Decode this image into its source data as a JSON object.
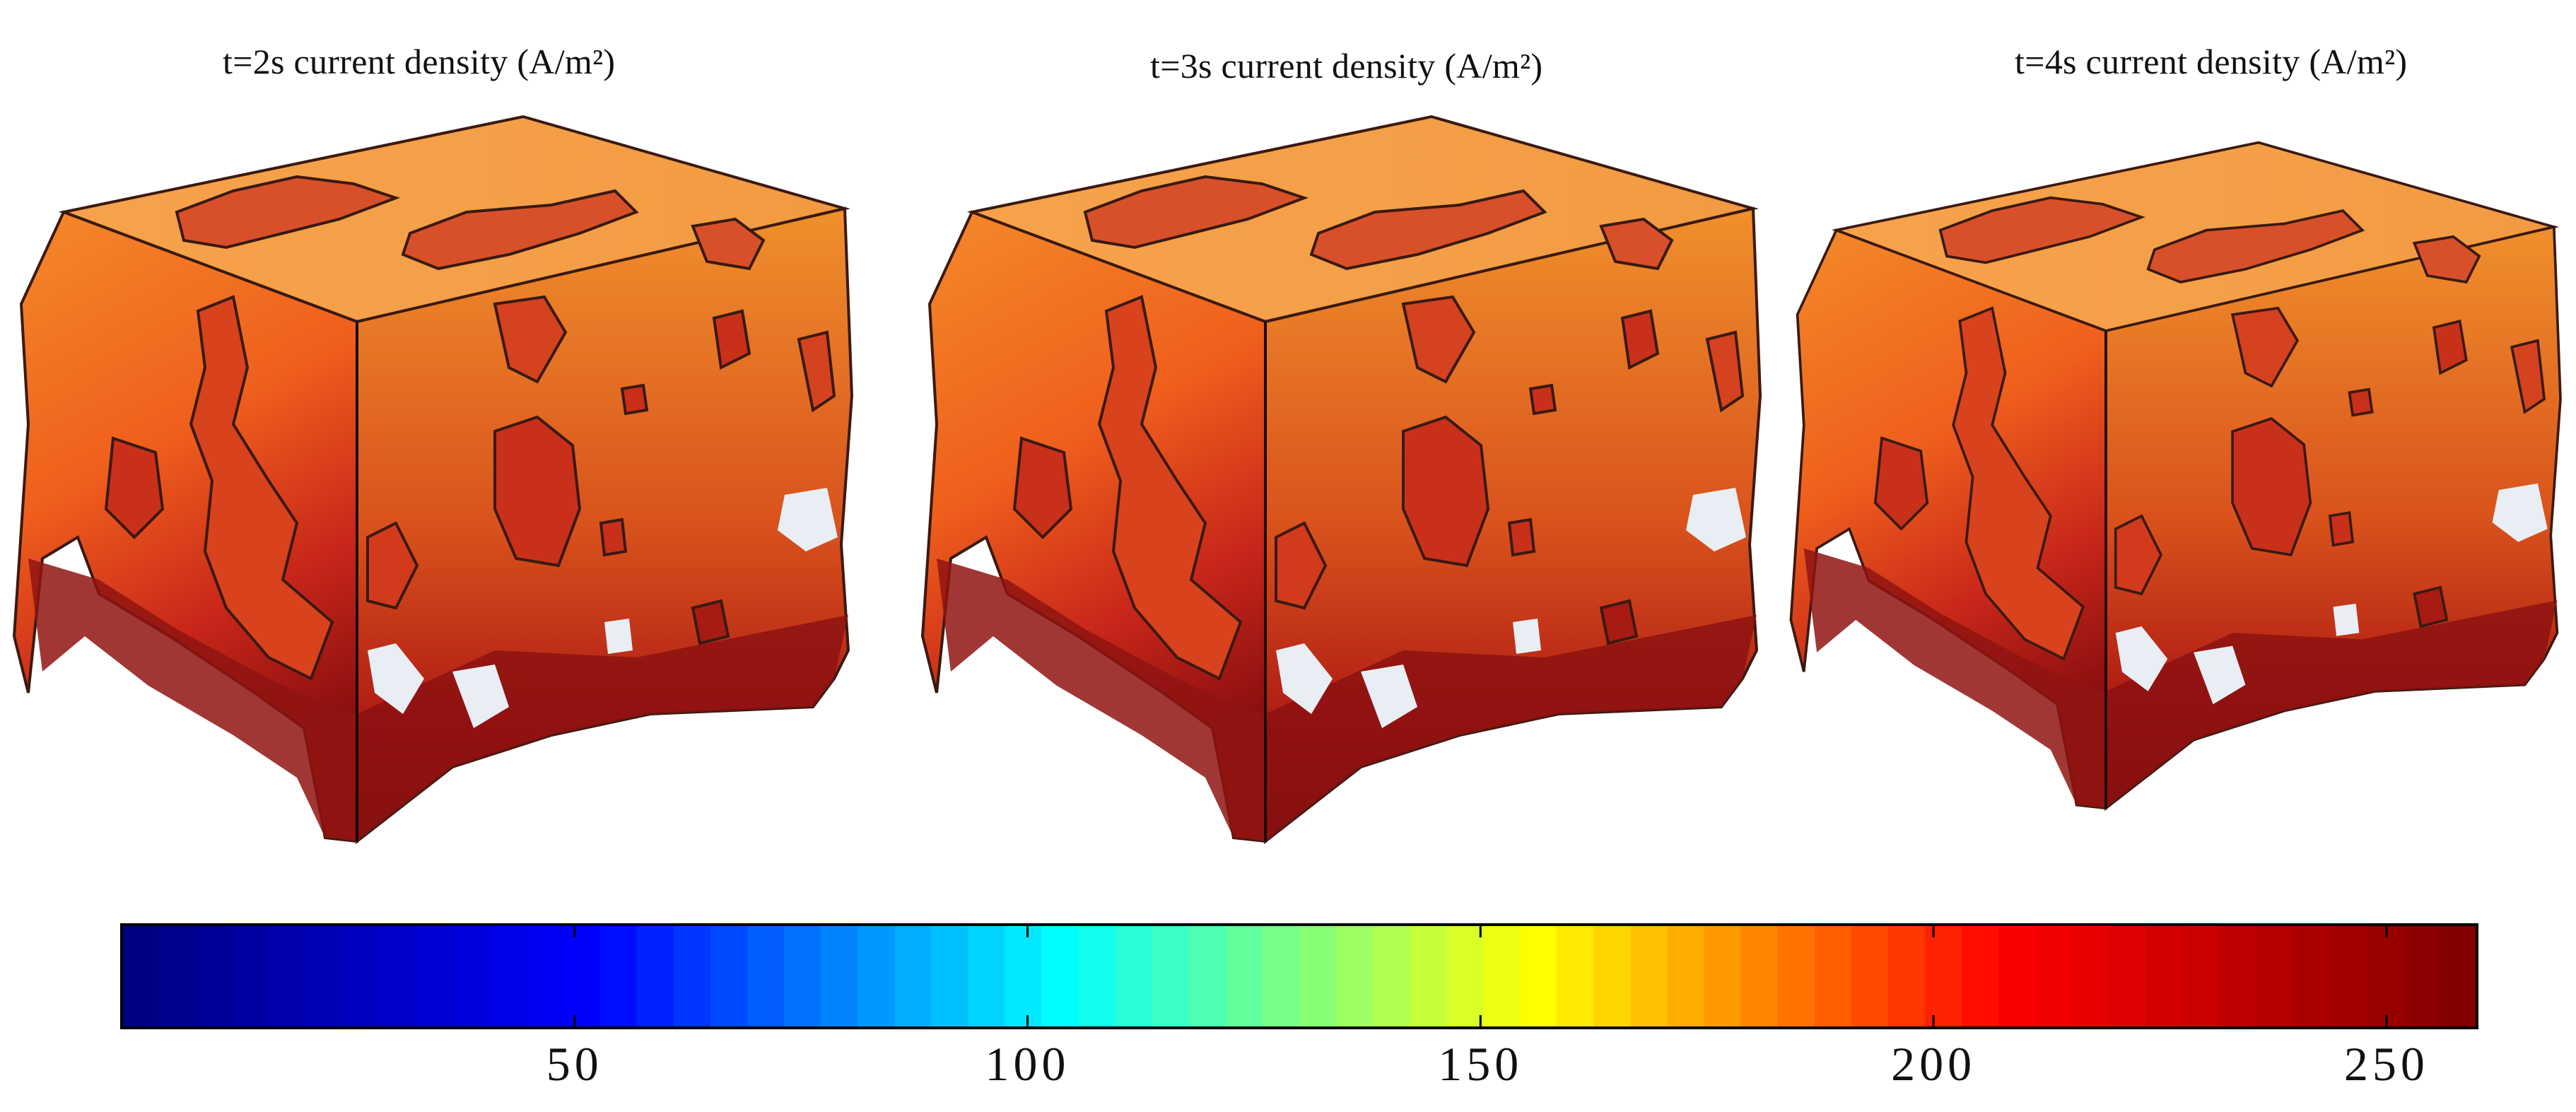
{
  "panels": [
    {
      "title": "t=2s  current density (A/m²)"
    },
    {
      "title": "t=3s  current density (A/m²)"
    },
    {
      "title": "t=4s  current density (A/m²)"
    }
  ],
  "colorbar": {
    "colormap": "jet",
    "range": [
      0,
      260
    ],
    "ticks": [
      50,
      100,
      150,
      200,
      250
    ],
    "tick_labels": [
      "50",
      "100",
      "150",
      "200",
      "250"
    ],
    "colors": [
      "#00007f",
      "#0000ff",
      "#00ffff",
      "#ffff00",
      "#ff0000",
      "#7f0000"
    ]
  },
  "surface_colors": {
    "high": "#8a0f0f",
    "mid": "#e0401a",
    "low": "#f7a24a",
    "void": "#e8eef4"
  }
}
